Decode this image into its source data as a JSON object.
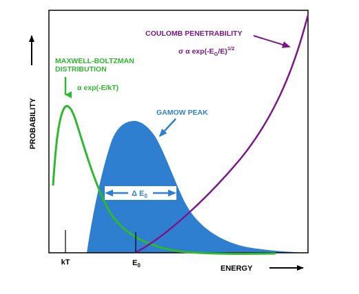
{
  "axes": {
    "ylabel": "PROBABILITY",
    "xlabel": "ENERGY",
    "tick_labels": [
      {
        "id": "kT",
        "text": "kT"
      },
      {
        "id": "E0",
        "main": "E",
        "sub": "0"
      }
    ]
  },
  "curves": {
    "maxwell_boltzmann": {
      "title_line1": "MAXWELL-BOLTZMAN",
      "title_line2": "DISTRIBUTION",
      "formula": "α  exp(-E/kT)",
      "color": "#2eb82e"
    },
    "coulomb": {
      "title": "COULOMB PENETRABILITY",
      "formula_prefix": "σ α exp(-E",
      "formula_sub": "G",
      "formula_mid": "/E)",
      "formula_sup": "1/2",
      "color": "#7a168a"
    },
    "gamow": {
      "title": "GAMOW PEAK",
      "width_label_prefix": "Δ E",
      "width_label_sub": "0",
      "color": "#2f7fd1"
    }
  },
  "colors": {
    "axis": "#000000",
    "label_green": "#2eb82e",
    "label_purple": "#7a168a",
    "label_blue": "#2f7fd1",
    "white": "#ffffff"
  }
}
